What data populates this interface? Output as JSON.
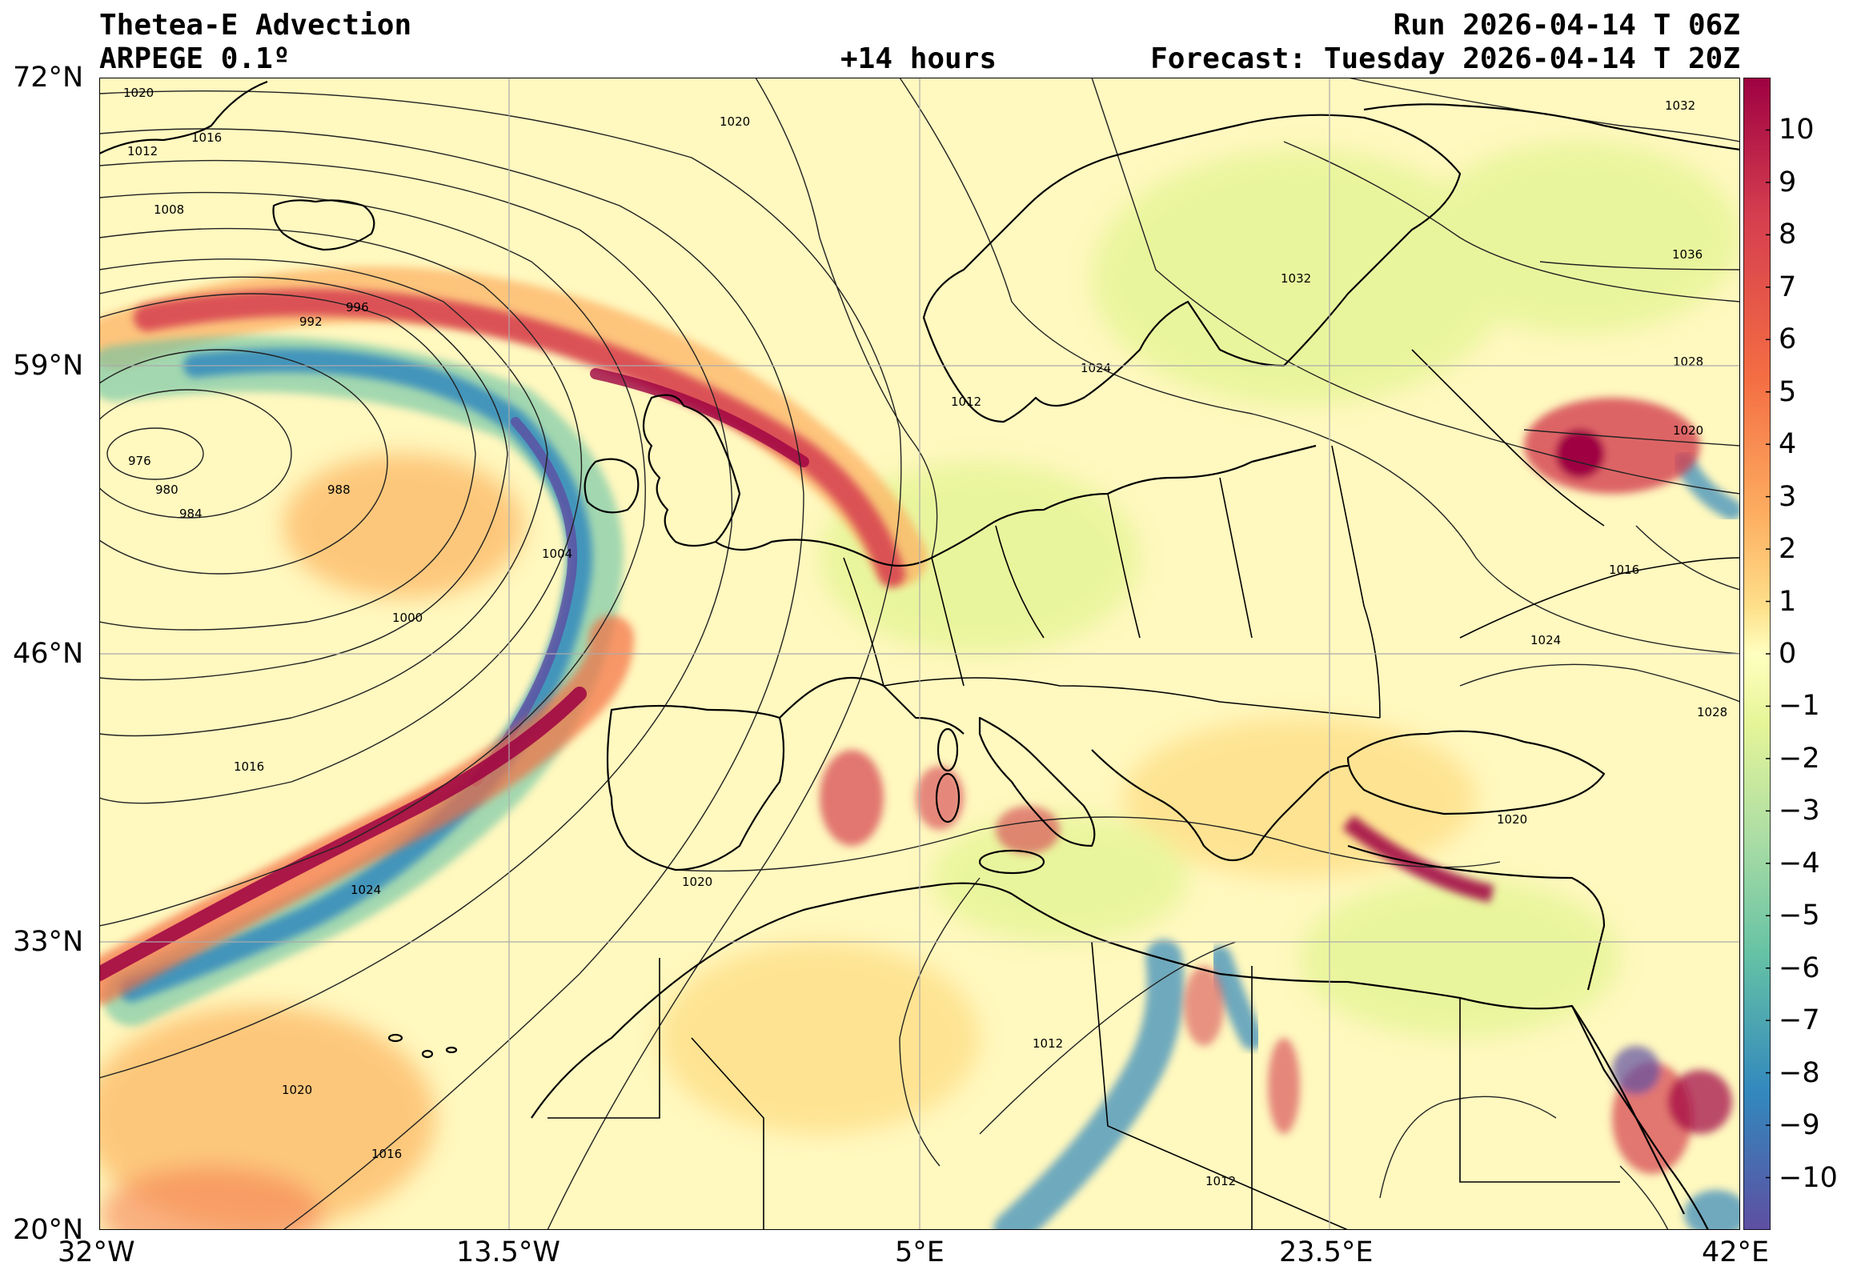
{
  "header": {
    "title": "Thetea-E Advection",
    "model": "ARPEGE 0.1º",
    "lead": "+14 hours",
    "run": "Run 2026-04-14 T 06Z",
    "forecast": "Forecast: Tuesday 2026-04-14 T 20Z"
  },
  "axes": {
    "lat_labels": [
      "72°N",
      "59°N",
      "46°N",
      "33°N",
      "20°N"
    ],
    "lon_labels": [
      "32°W",
      "13.5°W",
      "5°E",
      "23.5°E",
      "42°E"
    ],
    "lat_range": [
      20,
      72
    ],
    "lon_range": [
      -32,
      42
    ],
    "grid": true
  },
  "colorbar": {
    "ticks": [
      "10",
      "9",
      "8",
      "7",
      "6",
      "5",
      "4",
      "3",
      "2",
      "1",
      "0",
      "−1",
      "−2",
      "−3",
      "−4",
      "−5",
      "−6",
      "−7",
      "−8",
      "−9",
      "−10"
    ],
    "range": [
      -11,
      11
    ],
    "colors": [
      "#5e4fa2",
      "#3288bd",
      "#66c2a5",
      "#abdda4",
      "#e6f598",
      "#ffffbf",
      "#fee08b",
      "#fdae61",
      "#f46d43",
      "#d53e4f",
      "#9e0142"
    ]
  },
  "map": {
    "ocean_field_color": "#fff6b8",
    "coastline_color": "#000000",
    "isobar_color": "#222222",
    "isobar_labels": [
      "1020",
      "1012",
      "1016",
      "1008",
      "996",
      "992",
      "976",
      "980",
      "984",
      "988",
      "1004",
      "1000",
      "1016",
      "1024",
      "1020",
      "1020",
      "1024",
      "1032",
      "1032",
      "1036",
      "1028",
      "1020",
      "1016",
      "1024",
      "1020",
      "1012",
      "1012",
      "1016",
      "1020",
      "1012",
      "1028"
    ]
  }
}
